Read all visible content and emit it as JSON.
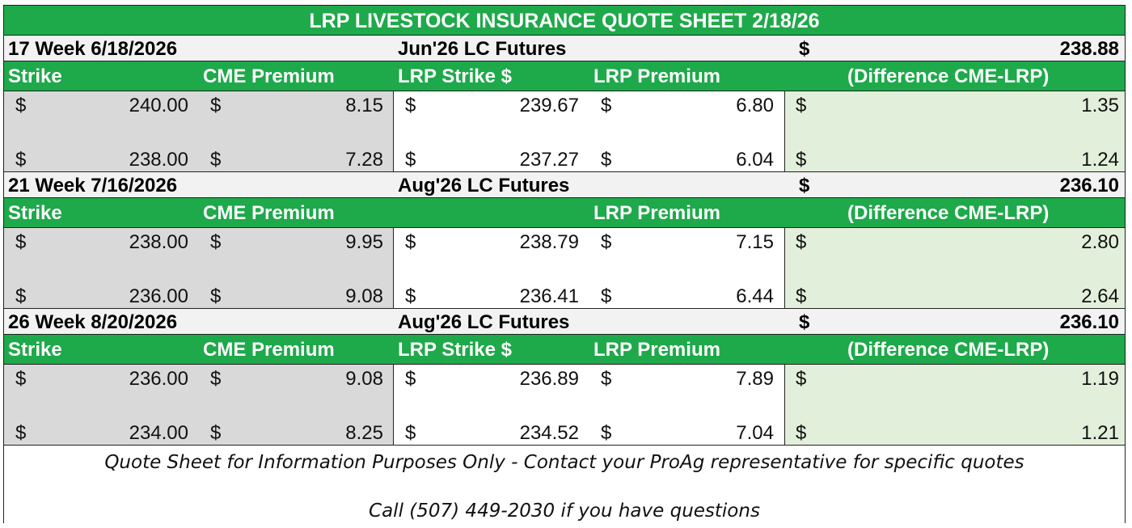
{
  "title": "LRP LIVESTOCK INSURANCE QUOTE SHEET 2/18/26",
  "sections": [
    {
      "week": "17 Week 6/18/2026",
      "futures_label": "Jun'26 LC Futures",
      "futures_dollar": "$",
      "futures_price": "238.88",
      "headers": {
        "strike": "Strike",
        "cme": "CME Premium",
        "lrp_strike": "LRP Strike $",
        "lrp_premium": "LRP Premium",
        "diff": "(Difference CME-LRP)"
      },
      "rows": [
        {
          "strike": "240.00",
          "cme": "8.15",
          "lrp_strike": "239.67",
          "lrp_premium": "6.80",
          "diff": "1.35"
        },
        {
          "strike": "238.00",
          "cme": "7.28",
          "lrp_strike": "237.27",
          "lrp_premium": "6.04",
          "diff": "1.24"
        }
      ]
    },
    {
      "week": "21 Week 7/16/2026",
      "futures_label": "Aug'26 LC Futures",
      "futures_dollar": "$",
      "futures_price": "236.10",
      "headers": {
        "strike": "Strike",
        "cme": "CME Premium",
        "lrp_strike": "",
        "lrp_premium": "LRP Premium",
        "diff": "(Difference CME-LRP)"
      },
      "rows": [
        {
          "strike": "238.00",
          "cme": "9.95",
          "lrp_strike": "238.79",
          "lrp_premium": "7.15",
          "diff": "2.80"
        },
        {
          "strike": "236.00",
          "cme": "9.08",
          "lrp_strike": "236.41",
          "lrp_premium": "6.44",
          "diff": "2.64"
        }
      ]
    },
    {
      "week": "26 Week 8/20/2026",
      "futures_label": "Aug'26 LC Futures",
      "futures_dollar": "$",
      "futures_price": "236.10",
      "headers": {
        "strike": "Strike",
        "cme": "CME Premium",
        "lrp_strike": "LRP Strike $",
        "lrp_premium": "LRP Premium",
        "diff": "(Difference CME-LRP)"
      },
      "rows": [
        {
          "strike": "236.00",
          "cme": "9.08",
          "lrp_strike": "236.89",
          "lrp_premium": "7.89",
          "diff": "1.19"
        },
        {
          "strike": "234.00",
          "cme": "8.25",
          "lrp_strike": "234.52",
          "lrp_premium": "7.04",
          "diff": "1.21"
        }
      ]
    }
  ],
  "currency_symbol": "$",
  "footer": {
    "line1": "Quote Sheet for Information Purposes Only - Contact your ProAg representative for specific quotes",
    "line2": "Call (507) 449-2030 if you have questions"
  },
  "colors": {
    "header_green": "#1ea94a",
    "gray_shade": "#d9d9d9",
    "green_shade": "#e2efda",
    "week_bg": "#f2f2f2"
  }
}
